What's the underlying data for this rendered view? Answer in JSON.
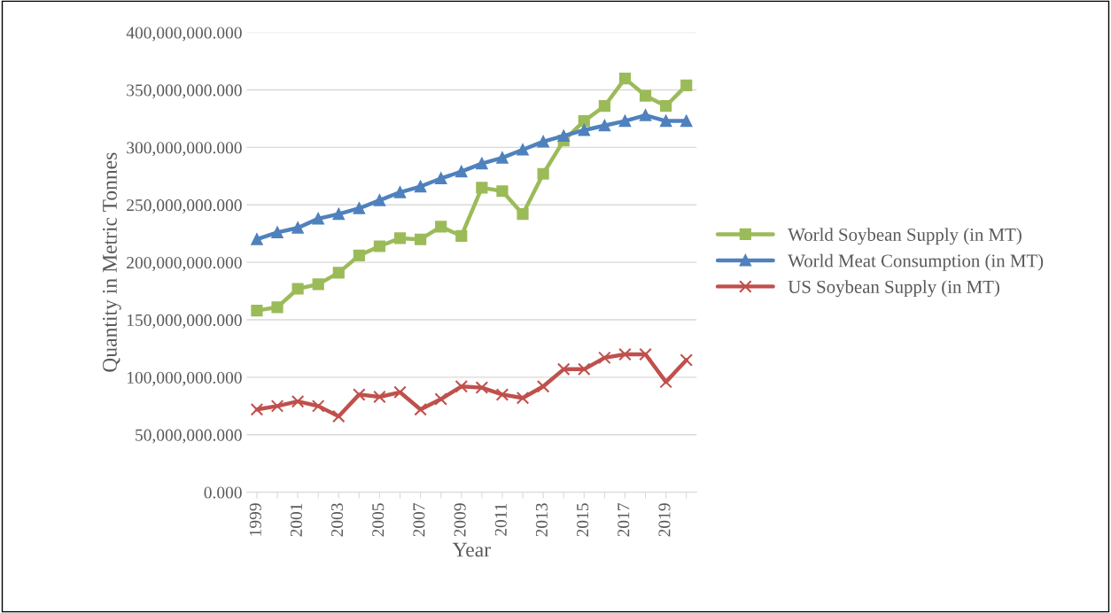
{
  "chart_data": {
    "type": "line",
    "xlabel": "Year",
    "ylabel": "Quantity in Metric Tonnes",
    "categories": [
      "1999",
      null,
      "2001",
      null,
      "2003",
      null,
      "2005",
      null,
      "2007",
      null,
      "2009",
      null,
      "2011",
      null,
      "2013",
      null,
      "2015",
      null,
      "2017",
      null,
      "2019",
      null
    ],
    "series": [
      {
        "name": "World Soybean Supply (in MT)",
        "color": "#9bbb59",
        "marker": "square",
        "values": [
          158000000,
          161000000,
          177000000,
          181000000,
          191000000,
          206000000,
          214000000,
          221000000,
          220000000,
          231000000,
          223000000,
          265000000,
          262000000,
          242000000,
          277000000,
          306000000,
          323000000,
          336000000,
          360000000,
          345000000,
          336000000,
          354000000
        ]
      },
      {
        "name": "World Meat Consumption (in MT)",
        "color": "#4f81bd",
        "marker": "triangle",
        "values": [
          220000000,
          226000000,
          230000000,
          238000000,
          242000000,
          247000000,
          254000000,
          261000000,
          266000000,
          273000000,
          279000000,
          286000000,
          291000000,
          298000000,
          305000000,
          310000000,
          315000000,
          319000000,
          323000000,
          328000000,
          323000000,
          323000000
        ]
      },
      {
        "name": "US Soybean Supply (in MT)",
        "color": "#c0504d",
        "marker": "cross",
        "values": [
          72000000,
          75000000,
          79000000,
          75000000,
          66000000,
          85000000,
          83000000,
          87000000,
          72000000,
          81000000,
          92000000,
          91000000,
          85000000,
          82000000,
          92000000,
          107000000,
          107000000,
          117000000,
          120000000,
          120000000,
          96000000,
          115000000
        ]
      }
    ],
    "ylim": [
      0,
      400000000
    ],
    "yticks": [
      {
        "value": 0,
        "label": "0.000"
      },
      {
        "value": 50000000,
        "label": "50,000,000.000"
      },
      {
        "value": 100000000,
        "label": "100,000,000.000"
      },
      {
        "value": 150000000,
        "label": "150,000,000.000"
      },
      {
        "value": 200000000,
        "label": "200,000,000.000"
      },
      {
        "value": 250000000,
        "label": "250,000,000.000"
      },
      {
        "value": 300000000,
        "label": "300,000,000.000"
      },
      {
        "value": 350000000,
        "label": "350,000,000.000"
      },
      {
        "value": 400000000,
        "label": "400,000,000.000"
      }
    ],
    "grid": "y",
    "legend": "right",
    "line_style": "solid"
  }
}
